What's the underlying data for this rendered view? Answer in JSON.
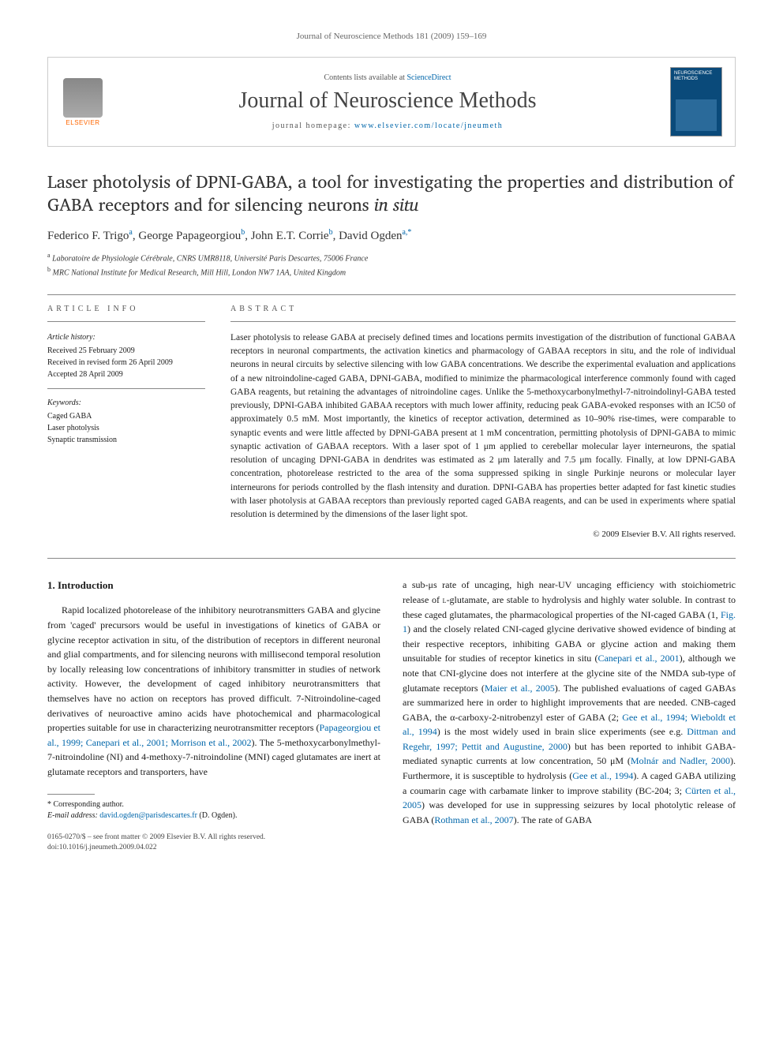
{
  "running_header": "Journal of Neuroscience Methods 181 (2009) 159–169",
  "journal_box": {
    "contents_prefix": "Contents lists available at ",
    "contents_link": "ScienceDirect",
    "journal_name": "Journal of Neuroscience Methods",
    "homepage_prefix": "journal homepage: ",
    "homepage_url": "www.elsevier.com/locate/jneumeth",
    "publisher": "ELSEVIER",
    "cover_label": "NEUROSCIENCE METHODS"
  },
  "title_part1": "Laser photolysis of DPNI-GABA, a tool for investigating the properties and distribution of GABA receptors and for silencing neurons ",
  "title_italic": "in situ",
  "authors_html": "Federico F. Trigo",
  "author_list": [
    {
      "name": "Federico F. Trigo",
      "aff": "a"
    },
    {
      "name": "George Papageorgiou",
      "aff": "b"
    },
    {
      "name": "John E.T. Corrie",
      "aff": "b"
    },
    {
      "name": "David Ogden",
      "aff": "a,*"
    }
  ],
  "affiliations": [
    {
      "sup": "a",
      "text": "Laboratoire de Physiologie Cérébrale, CNRS UMR8118, Université Paris Descartes, 75006 France"
    },
    {
      "sup": "b",
      "text": "MRC National Institute for Medical Research, Mill Hill, London NW7 1AA, United Kingdom"
    }
  ],
  "info": {
    "heading_article": "article info",
    "history_label": "Article history:",
    "received": "Received 25 February 2009",
    "revised": "Received in revised form 26 April 2009",
    "accepted": "Accepted 28 April 2009",
    "keywords_label": "Keywords:",
    "keywords": [
      "Caged GABA",
      "Laser photolysis",
      "Synaptic transmission"
    ]
  },
  "abstract": {
    "heading": "abstract",
    "text": "Laser photolysis to release GABA at precisely defined times and locations permits investigation of the distribution of functional GABAA receptors in neuronal compartments, the activation kinetics and pharmacology of GABAA receptors in situ, and the role of individual neurons in neural circuits by selective silencing with low GABA concentrations. We describe the experimental evaluation and applications of a new nitroindoline-caged GABA, DPNI-GABA, modified to minimize the pharmacological interference commonly found with caged GABA reagents, but retaining the advantages of nitroindoline cages. Unlike the 5-methoxycarbonylmethyl-7-nitroindolinyl-GABA tested previously, DPNI-GABA inhibited GABAA receptors with much lower affinity, reducing peak GABA-evoked responses with an IC50 of approximately 0.5 mM. Most importantly, the kinetics of receptor activation, determined as 10–90% rise-times, were comparable to synaptic events and were little affected by DPNI-GABA present at 1 mM concentration, permitting photolysis of DPNI-GABA to mimic synaptic activation of GABAA receptors. With a laser spot of 1 μm applied to cerebellar molecular layer interneurons, the spatial resolution of uncaging DPNI-GABA in dendrites was estimated as 2 μm laterally and 7.5 μm focally. Finally, at low DPNI-GABA concentration, photorelease restricted to the area of the soma suppressed spiking in single Purkinje neurons or molecular layer interneurons for periods controlled by the flash intensity and duration. DPNI-GABA has properties better adapted for fast kinetic studies with laser photolysis at GABAA receptors than previously reported caged GABA reagents, and can be used in experiments where spatial resolution is determined by the dimensions of the laser light spot.",
    "copyright": "© 2009 Elsevier B.V. All rights reserved."
  },
  "body": {
    "section_number": "1.",
    "section_title": "Introduction",
    "left_para": "Rapid localized photorelease of the inhibitory neurotransmitters GABA and glycine from 'caged' precursors would be useful in investigations of kinetics of GABA or glycine receptor activation in situ, of the distribution of receptors in different neuronal and glial compartments, and for silencing neurons with millisecond temporal resolution by locally releasing low concentrations of inhibitory transmitter in studies of network activity. However, the development of caged inhibitory neurotransmitters that themselves have no action on receptors has proved difficult. 7-Nitroindoline-caged derivatives of neuroactive amino acids have photochemical and pharmacological properties suitable for use in characterizing neurotransmitter receptors (",
    "left_ref1": "Papageorgiou et al., 1999; Canepari et al., 2001; Morrison et al., 2002",
    "left_tail": "). The 5-methoxycarbonylmethyl-7-nitroindoline (NI) and 4-methoxy-7-nitroindoline (MNI) caged glutamates are inert at glutamate receptors and transporters, have",
    "right_p1a": "a sub-μs rate of uncaging, high near-UV uncaging efficiency with stoichiometric release of ",
    "right_p1_smallcaps": "l",
    "right_p1b": "-glutamate, are stable to hydrolysis and highly water soluble. In contrast to these caged glutamates, the pharmacological properties of the NI-caged GABA (1, ",
    "right_fig1": "Fig. 1",
    "right_p1c": ") and the closely related CNI-caged glycine derivative showed evidence of binding at their respective receptors, inhibiting GABA or glycine action and making them unsuitable for studies of receptor kinetics in situ (",
    "right_ref2": "Canepari et al., 2001",
    "right_p1d": "), although we note that CNI-glycine does not interfere at the glycine site of the NMDA sub-type of glutamate receptors (",
    "right_ref3": "Maier et al., 2005",
    "right_p1e": "). The published evaluations of caged GABAs are summarized here in order to highlight improvements that are needed. CNB-caged GABA, the α-carboxy-2-nitrobenzyl ester of GABA (2; ",
    "right_ref4": "Gee et al., 1994; Wieboldt et al., 1994",
    "right_p1f": ") is the most widely used in brain slice experiments (see e.g. ",
    "right_ref5": "Dittman and Regehr, 1997; Pettit and Augustine, 2000",
    "right_p1g": ") but has been reported to inhibit GABA-mediated synaptic currents at low concentration, 50 μM (",
    "right_ref6": "Molnár and Nadler, 2000",
    "right_p1h": "). Furthermore, it is susceptible to hydrolysis (",
    "right_ref7": "Gee et al., 1994",
    "right_p1i": "). A caged GABA utilizing a coumarin cage with carbamate linker to improve stability (BC-204; 3; ",
    "right_ref8": "Cürten et al., 2005",
    "right_p1j": ") was developed for use in suppressing seizures by local photolytic release of GABA (",
    "right_ref9": "Rothman et al., 2007",
    "right_p1k": "). The rate of GABA"
  },
  "footnote": {
    "corr_label": "* Corresponding author.",
    "email_label": "E-mail address: ",
    "email": "david.ogden@parisdescartes.fr",
    "email_who": " (D. Ogden)."
  },
  "footer": {
    "line1": "0165-0270/$ – see front matter © 2009 Elsevier B.V. All rights reserved.",
    "line2": "doi:10.1016/j.jneumeth.2009.04.022"
  }
}
